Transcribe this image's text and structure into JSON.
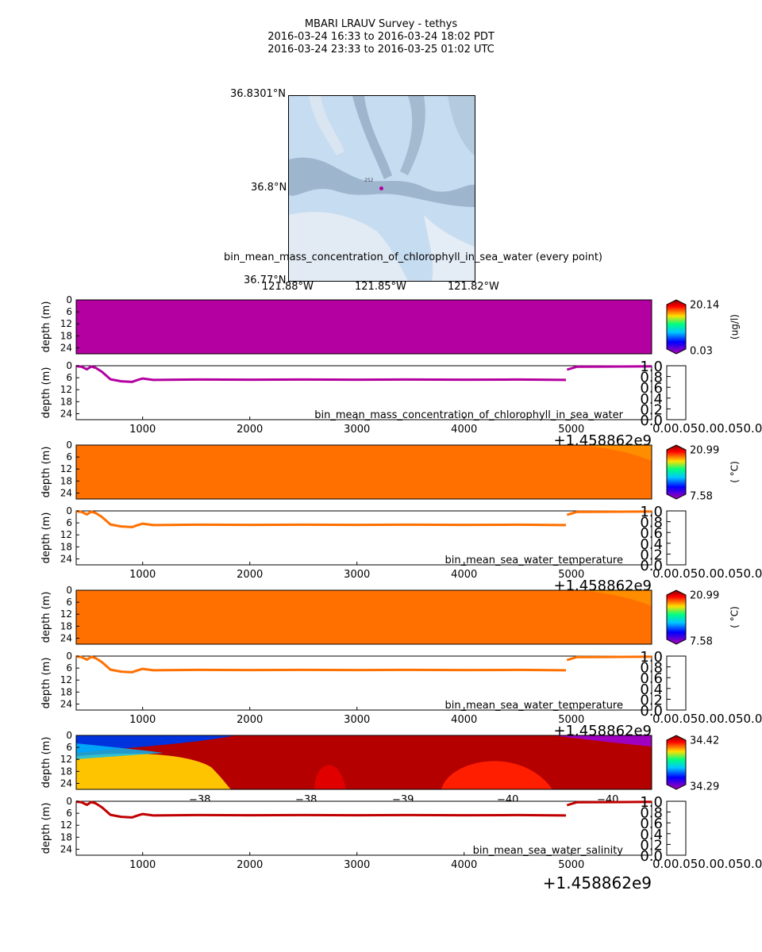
{
  "header": {
    "line1": "MBARI LRAUV Survey - tethys",
    "line2": "2016-03-24 16:33  to  2016-03-24 18:02 PDT",
    "line3": "2016-03-24 23:33  to  2016-03-25 01:02 UTC"
  },
  "map": {
    "lat_labels": [
      "36.8301°N",
      "36.8°N",
      "36.77°N"
    ],
    "lon_labels": [
      "121.88°W",
      "121.85°W",
      "121.82°W"
    ],
    "marker_label": "252",
    "caption": "bin_mean_mass_concentration_of_chlorophyll_in_sea_water (every point)"
  },
  "common": {
    "ylabel": "depth (m)",
    "y_ticks": [
      "0",
      "6",
      "12",
      "18",
      "24"
    ],
    "x_ticks": [
      "1000",
      "2000",
      "3000",
      "4000",
      "5000"
    ],
    "offset": "+1.458862e9",
    "colorbar_ticks": [
      "1.0",
      "0.8",
      "0.6",
      "0.4",
      "0.2",
      "0.0"
    ],
    "colorbar_x_ticks": "0.00.050.00.050.0"
  },
  "chart_data": [
    {
      "type": "heatmap",
      "panel": "chlorophyll-section",
      "ylabel": "depth (m)",
      "ylim": [
        27,
        0
      ],
      "xlim": [
        380,
        5750
      ],
      "fill": "#b400a0",
      "colorbar": {
        "max": "20.14",
        "min": "0.03",
        "unit": "(ug/l)"
      }
    },
    {
      "type": "line",
      "panel": "chlorophyll-track",
      "series": [
        {
          "name": "bin_mean_mass_concentration_of_chlorophyll_in_sea_water",
          "color": "#b400a0",
          "x": [
            380,
            430,
            480,
            520,
            560,
            620,
            700,
            800,
            900,
            950,
            1000,
            1100,
            1500,
            2000,
            2500,
            3000,
            3500,
            4000,
            4500,
            4950,
            4960,
            5050,
            5750
          ],
          "y": [
            0.2,
            0.5,
            1.8,
            0.4,
            1.0,
            3.0,
            6.8,
            7.8,
            8.1,
            7.2,
            6.4,
            7.1,
            6.9,
            7.0,
            6.9,
            7.0,
            6.9,
            7.0,
            6.9,
            7.1,
            2.0,
            0.5,
            0.3
          ]
        }
      ],
      "ylim": [
        27,
        0
      ],
      "xlim": [
        380,
        5750
      ],
      "colorbar": {
        "ticks": [
          "1.0",
          "0.8",
          "0.6",
          "0.4",
          "0.2",
          "0.0"
        ]
      }
    },
    {
      "type": "heatmap",
      "panel": "temperature-section-1",
      "ylabel": "depth (m)",
      "ylim": [
        27,
        0
      ],
      "xlim": [
        380,
        5750
      ],
      "fill": "#ff7000",
      "colorbar": {
        "max": "20.99",
        "min": "7.58",
        "unit": "( °C)"
      }
    },
    {
      "type": "line",
      "panel": "temperature-track-1",
      "series": [
        {
          "name": "bin_mean_sea_water_temperature",
          "color": "#ff7000",
          "x": [
            380,
            430,
            480,
            520,
            560,
            620,
            700,
            800,
            900,
            950,
            1000,
            1100,
            1500,
            2000,
            2500,
            3000,
            3500,
            4000,
            4500,
            4950,
            4960,
            5050,
            5750
          ],
          "y": [
            0.2,
            0.5,
            1.8,
            0.4,
            1.0,
            3.0,
            6.8,
            7.8,
            8.1,
            7.2,
            6.4,
            7.1,
            6.9,
            7.0,
            6.9,
            7.0,
            6.9,
            7.0,
            6.9,
            7.1,
            2.0,
            0.5,
            0.3
          ]
        }
      ],
      "ylim": [
        27,
        0
      ],
      "xlim": [
        380,
        5750
      ]
    },
    {
      "type": "heatmap",
      "panel": "temperature-section-2",
      "ylabel": "depth (m)",
      "ylim": [
        27,
        0
      ],
      "xlim": [
        380,
        5750
      ],
      "fill": "#ff7000",
      "colorbar": {
        "max": "20.99",
        "min": "7.58",
        "unit": "( °C)"
      }
    },
    {
      "type": "line",
      "panel": "temperature-track-2",
      "series": [
        {
          "name": "bin_mean_sea_water_temperature",
          "color": "#ff7000",
          "x": [
            380,
            430,
            480,
            520,
            560,
            620,
            700,
            800,
            900,
            950,
            1000,
            1100,
            1500,
            2000,
            2500,
            3000,
            3500,
            4000,
            4500,
            4950,
            4960,
            5050,
            5750
          ],
          "y": [
            0.2,
            0.5,
            1.8,
            0.4,
            1.0,
            3.0,
            6.8,
            7.8,
            8.1,
            7.2,
            6.4,
            7.1,
            6.9,
            7.0,
            6.9,
            7.0,
            6.9,
            7.0,
            6.9,
            7.1,
            2.0,
            0.5,
            0.3
          ]
        }
      ],
      "ylim": [
        27,
        0
      ],
      "xlim": [
        380,
        5750
      ]
    },
    {
      "type": "heatmap",
      "panel": "salinity-section",
      "ylabel": "depth (m)",
      "ylim": [
        27,
        0
      ],
      "xlim": [
        380,
        5750
      ],
      "colorbar": {
        "max": "34.42",
        "min": "34.29",
        "unit": ""
      },
      "overlap_ticks": [
        "−38",
        "−38",
        "−39",
        "−40",
        "−40"
      ]
    },
    {
      "type": "line",
      "panel": "salinity-track",
      "series": [
        {
          "name": "bin_mean_sea_water_salinity",
          "color": "#c00000",
          "x": [
            380,
            430,
            480,
            520,
            560,
            620,
            700,
            800,
            900,
            950,
            1000,
            1100,
            1500,
            2000,
            2500,
            3000,
            3500,
            4000,
            4500,
            4950,
            4960,
            5050,
            5750
          ],
          "y": [
            0.2,
            0.5,
            1.8,
            0.4,
            1.0,
            3.0,
            6.8,
            7.8,
            8.1,
            7.2,
            6.4,
            7.1,
            6.9,
            7.0,
            6.9,
            7.0,
            6.9,
            7.0,
            6.9,
            7.1,
            2.0,
            0.5,
            0.3
          ]
        }
      ],
      "ylim": [
        27,
        0
      ],
      "xlim": [
        380,
        5750
      ]
    }
  ]
}
